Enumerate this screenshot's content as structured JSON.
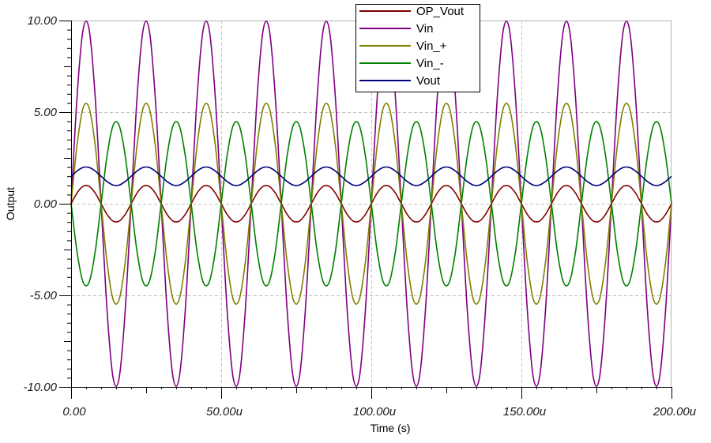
{
  "chart_data": {
    "type": "line",
    "title": "",
    "xlabel": "Time (s)",
    "ylabel": "Output",
    "xlim": [
      0,
      200
    ],
    "ylim": [
      -10,
      10
    ],
    "x_unit": "u (microseconds)",
    "x_ticks": [
      0,
      50,
      100,
      150,
      200
    ],
    "x_tick_labels": [
      "0.00",
      "50.00u",
      "100.00u",
      "150.00u",
      "200.00u"
    ],
    "y_ticks": [
      10,
      5,
      0,
      -5,
      -10
    ],
    "y_tick_labels": [
      "10.00",
      "5.00",
      "0.00",
      "-5.00",
      "-10.00"
    ],
    "grid": true,
    "legend_position": "top-center",
    "x_step": 2,
    "series": [
      {
        "name": "OP_Vout",
        "color": "#800000",
        "values": [
          0,
          0.59,
          0.95,
          0.95,
          0.59,
          0,
          -0.59,
          -0.95,
          -0.95,
          -0.59,
          0,
          0.59,
          0.95,
          0.95,
          0.59,
          0,
          -0.59,
          -0.95,
          -0.95,
          -0.59,
          0,
          0.59,
          0.95,
          0.95,
          0.59,
          0,
          -0.59,
          -0.95,
          -0.95,
          -0.59,
          0,
          0.59,
          0.95,
          0.95,
          0.59,
          0,
          -0.59,
          -0.95,
          -0.95,
          -0.59,
          0,
          0.59,
          0.95,
          0.95,
          0.59,
          0,
          -0.59,
          -0.95,
          -0.95,
          -0.59,
          0,
          0.59,
          0.95,
          0.95,
          0.59,
          0,
          -0.59,
          -0.95,
          -0.95,
          -0.59,
          0,
          0.59,
          0.95,
          0.95,
          0.59,
          0,
          -0.59,
          -0.95,
          -0.95,
          -0.59,
          0,
          0.59,
          0.95,
          0.95,
          0.59,
          0,
          -0.59,
          -0.95,
          -0.95,
          -0.59,
          0,
          0.59,
          0.95,
          0.95,
          0.59,
          0,
          -0.59,
          -0.95,
          -0.95,
          -0.59,
          0,
          0.59,
          0.95,
          0.95,
          0.59,
          0,
          -0.59,
          -0.95,
          -0.95,
          -0.59,
          0
        ]
      },
      {
        "name": "Vin",
        "color": "#800080",
        "values": [
          0,
          5.88,
          9.51,
          9.51,
          5.88,
          0,
          -5.88,
          -9.51,
          -9.51,
          -5.88,
          0,
          5.88,
          9.51,
          9.51,
          5.88,
          0,
          -5.88,
          -9.51,
          -9.51,
          -5.88,
          0,
          5.88,
          9.51,
          9.51,
          5.88,
          0,
          -5.88,
          -9.51,
          -9.51,
          -5.88,
          0,
          5.88,
          9.51,
          9.51,
          5.88,
          0,
          -5.88,
          -9.51,
          -9.51,
          -5.88,
          0,
          5.88,
          9.51,
          9.51,
          5.88,
          0,
          -5.88,
          -9.51,
          -9.51,
          -5.88,
          0,
          5.88,
          9.51,
          9.51,
          5.88,
          0,
          -5.88,
          -9.51,
          -9.51,
          -5.88,
          0,
          5.88,
          9.51,
          9.51,
          5.88,
          0,
          -5.88,
          -9.51,
          -9.51,
          -5.88,
          0,
          5.88,
          9.51,
          9.51,
          5.88,
          0,
          -5.88,
          -9.51,
          -9.51,
          -5.88,
          0,
          5.88,
          9.51,
          9.51,
          5.88,
          0,
          -5.88,
          -9.51,
          -9.51,
          -5.88,
          0,
          5.88,
          9.51,
          9.51,
          5.88,
          0,
          -5.88,
          -9.51,
          -9.51,
          -5.88,
          0
        ]
      },
      {
        "name": "Vin_+",
        "color": "#808000",
        "values": [
          0,
          3.23,
          5.23,
          5.23,
          3.23,
          0,
          -3.23,
          -5.23,
          -5.23,
          -3.23,
          0,
          3.23,
          5.23,
          5.23,
          3.23,
          0,
          -3.23,
          -5.23,
          -5.23,
          -3.23,
          0,
          3.23,
          5.23,
          5.23,
          3.23,
          0,
          -3.23,
          -5.23,
          -5.23,
          -3.23,
          0,
          3.23,
          5.23,
          5.23,
          3.23,
          0,
          -3.23,
          -5.23,
          -5.23,
          -3.23,
          0,
          3.23,
          5.23,
          5.23,
          3.23,
          0,
          -3.23,
          -5.23,
          -5.23,
          -3.23,
          0,
          3.23,
          5.23,
          5.23,
          3.23,
          0,
          -3.23,
          -5.23,
          -5.23,
          -3.23,
          0,
          3.23,
          5.23,
          5.23,
          3.23,
          0,
          -3.23,
          -5.23,
          -5.23,
          -3.23,
          0,
          3.23,
          5.23,
          5.23,
          3.23,
          0,
          -3.23,
          -5.23,
          -5.23,
          -3.23,
          0,
          3.23,
          5.23,
          5.23,
          3.23,
          0,
          -3.23,
          -5.23,
          -5.23,
          -3.23,
          0,
          3.23,
          5.23,
          5.23,
          3.23,
          0,
          -3.23,
          -5.23,
          -5.23,
          -3.23,
          0
        ]
      },
      {
        "name": "Vin_-",
        "color": "#008000",
        "values": [
          0,
          -2.65,
          -4.28,
          -4.28,
          -2.65,
          0,
          2.65,
          4.28,
          4.28,
          2.65,
          0,
          -2.65,
          -4.28,
          -4.28,
          -2.65,
          0,
          2.65,
          4.28,
          4.28,
          2.65,
          0,
          -2.65,
          -4.28,
          -4.28,
          -2.65,
          0,
          2.65,
          4.28,
          4.28,
          2.65,
          0,
          -2.65,
          -4.28,
          -4.28,
          -2.65,
          0,
          2.65,
          4.28,
          4.28,
          2.65,
          0,
          -2.65,
          -4.28,
          -4.28,
          -2.65,
          0,
          2.65,
          4.28,
          4.28,
          2.65,
          0,
          -2.65,
          -4.28,
          -4.28,
          -2.65,
          0,
          2.65,
          4.28,
          4.28,
          2.65,
          0,
          -2.65,
          -4.28,
          -4.28,
          -2.65,
          0,
          2.65,
          4.28,
          4.28,
          2.65,
          0,
          -2.65,
          -4.28,
          -4.28,
          -2.65,
          0,
          2.65,
          4.28,
          4.28,
          2.65,
          0,
          -2.65,
          -4.28,
          -4.28,
          -2.65,
          0,
          2.65,
          4.28,
          4.28,
          2.65,
          0,
          -2.65,
          -4.28,
          -4.28,
          -2.65,
          0,
          2.65,
          4.28,
          4.28,
          2.65,
          0
        ]
      },
      {
        "name": "Vout",
        "color": "#000080",
        "values": [
          1.5,
          1.79,
          1.98,
          1.98,
          1.79,
          1.5,
          1.21,
          1.02,
          1.02,
          1.21,
          1.5,
          1.79,
          1.98,
          1.98,
          1.79,
          1.5,
          1.21,
          1.02,
          1.02,
          1.21,
          1.5,
          1.79,
          1.98,
          1.98,
          1.79,
          1.5,
          1.21,
          1.02,
          1.02,
          1.21,
          1.5,
          1.79,
          1.98,
          1.98,
          1.79,
          1.5,
          1.21,
          1.02,
          1.02,
          1.21,
          1.5,
          1.79,
          1.98,
          1.98,
          1.79,
          1.5,
          1.21,
          1.02,
          1.02,
          1.21,
          1.5,
          1.79,
          1.98,
          1.98,
          1.79,
          1.5,
          1.21,
          1.02,
          1.02,
          1.21,
          1.5,
          1.79,
          1.98,
          1.98,
          1.79,
          1.5,
          1.21,
          1.02,
          1.02,
          1.21,
          1.5,
          1.79,
          1.98,
          1.98,
          1.79,
          1.5,
          1.21,
          1.02,
          1.02,
          1.21,
          1.5,
          1.79,
          1.98,
          1.98,
          1.79,
          1.5,
          1.21,
          1.02,
          1.02,
          1.21,
          1.5,
          1.79,
          1.98,
          1.98,
          1.79,
          1.5,
          1.21,
          1.02,
          1.02,
          1.21,
          1.5
        ]
      }
    ]
  }
}
